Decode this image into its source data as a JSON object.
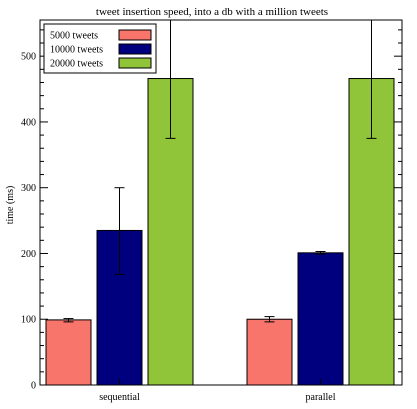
{
  "chart_data": {
    "type": "bar",
    "title": "tweet insertion speed, into a db with a million tweets",
    "xlabel": "",
    "ylabel": "time (ms)",
    "ylim": [
      0,
      555
    ],
    "yticks": [
      0,
      100,
      200,
      300,
      400,
      500
    ],
    "grid": false,
    "legend_position": "top-left",
    "categories": [
      "sequential",
      "parallel"
    ],
    "series": [
      {
        "name": "5000 tweets",
        "color": "#f8756c",
        "values": [
          99,
          100
        ],
        "err_low": [
          96,
          96
        ],
        "err_high": [
          101,
          104
        ]
      },
      {
        "name": "10000 tweets",
        "color": "#00007f",
        "values": [
          235,
          201
        ],
        "err_low": [
          168,
          199
        ],
        "err_high": [
          300,
          203
        ]
      },
      {
        "name": "20000 tweets",
        "color": "#90c53a",
        "values": [
          466,
          466
        ],
        "err_low": [
          375,
          375
        ],
        "err_high": [
          555,
          555
        ]
      }
    ]
  }
}
